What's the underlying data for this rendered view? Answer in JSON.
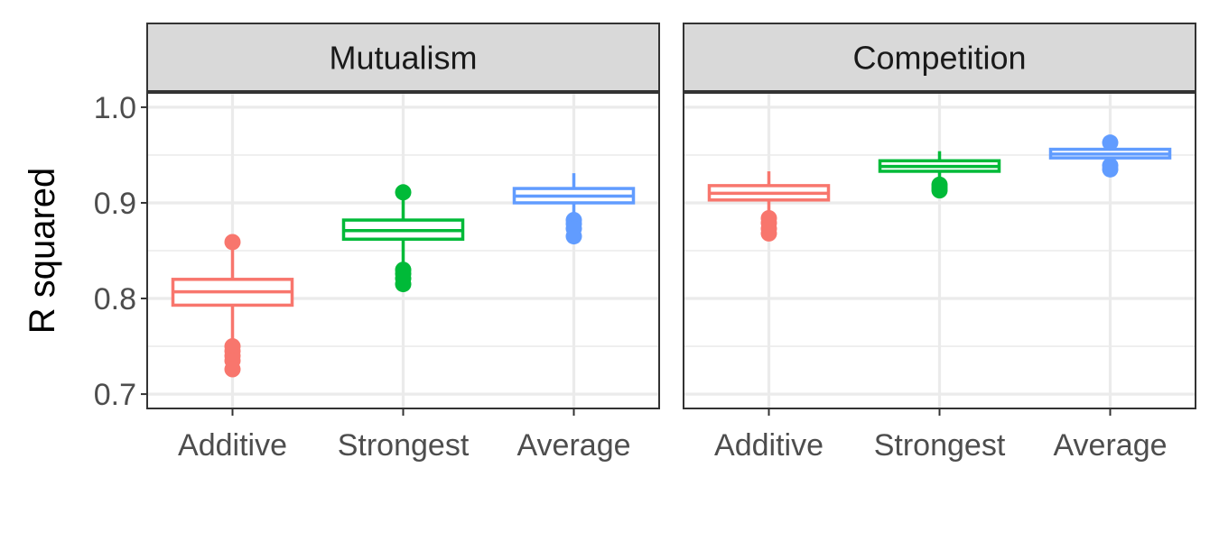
{
  "chart_data": {
    "type": "boxplot",
    "ylabel": "R squared",
    "ylim": [
      0.685,
      1.015
    ],
    "yticks": [
      0.7,
      0.8,
      0.9,
      1.0
    ],
    "ytick_labels": [
      "0.7",
      "0.8",
      "0.9",
      "1.0"
    ],
    "categories": [
      "Additive",
      "Strongest",
      "Average"
    ],
    "colors": {
      "Additive": "#F8766D",
      "Strongest": "#00BA38",
      "Average": "#619CFF"
    },
    "grid": true,
    "facets": [
      {
        "name": "Mutualism",
        "boxes": [
          {
            "category": "Additive",
            "q1": 0.793,
            "median": 0.807,
            "q3": 0.82,
            "whisker_low": 0.757,
            "whisker_high": 0.859,
            "outliers_high": [
              0.859
            ],
            "outliers_low": [
              0.75,
              0.745,
              0.74,
              0.735,
              0.726
            ]
          },
          {
            "category": "Strongest",
            "q1": 0.862,
            "median": 0.871,
            "q3": 0.882,
            "whisker_low": 0.835,
            "whisker_high": 0.911,
            "outliers_high": [
              0.911
            ],
            "outliers_low": [
              0.83,
              0.826,
              0.821,
              0.815
            ]
          },
          {
            "category": "Average",
            "q1": 0.9,
            "median": 0.907,
            "q3": 0.915,
            "whisker_low": 0.884,
            "whisker_high": 0.931,
            "outliers_high": [],
            "outliers_low": [
              0.882,
              0.878,
              0.873,
              0.865
            ]
          }
        ]
      },
      {
        "name": "Competition",
        "boxes": [
          {
            "category": "Additive",
            "q1": 0.903,
            "median": 0.91,
            "q3": 0.918,
            "whisker_low": 0.888,
            "whisker_high": 0.933,
            "outliers_high": [],
            "outliers_low": [
              0.884,
              0.879,
              0.873,
              0.868
            ]
          },
          {
            "category": "Strongest",
            "q1": 0.933,
            "median": 0.938,
            "q3": 0.944,
            "whisker_low": 0.921,
            "whisker_high": 0.954,
            "outliers_high": [],
            "outliers_low": [
              0.919,
              0.916,
              0.913
            ]
          },
          {
            "category": "Average",
            "q1": 0.947,
            "median": 0.951,
            "q3": 0.956,
            "whisker_low": 0.94,
            "whisker_high": 0.962,
            "outliers_high": [
              0.963
            ],
            "outliers_low": [
              0.939,
              0.935
            ]
          }
        ]
      }
    ]
  }
}
